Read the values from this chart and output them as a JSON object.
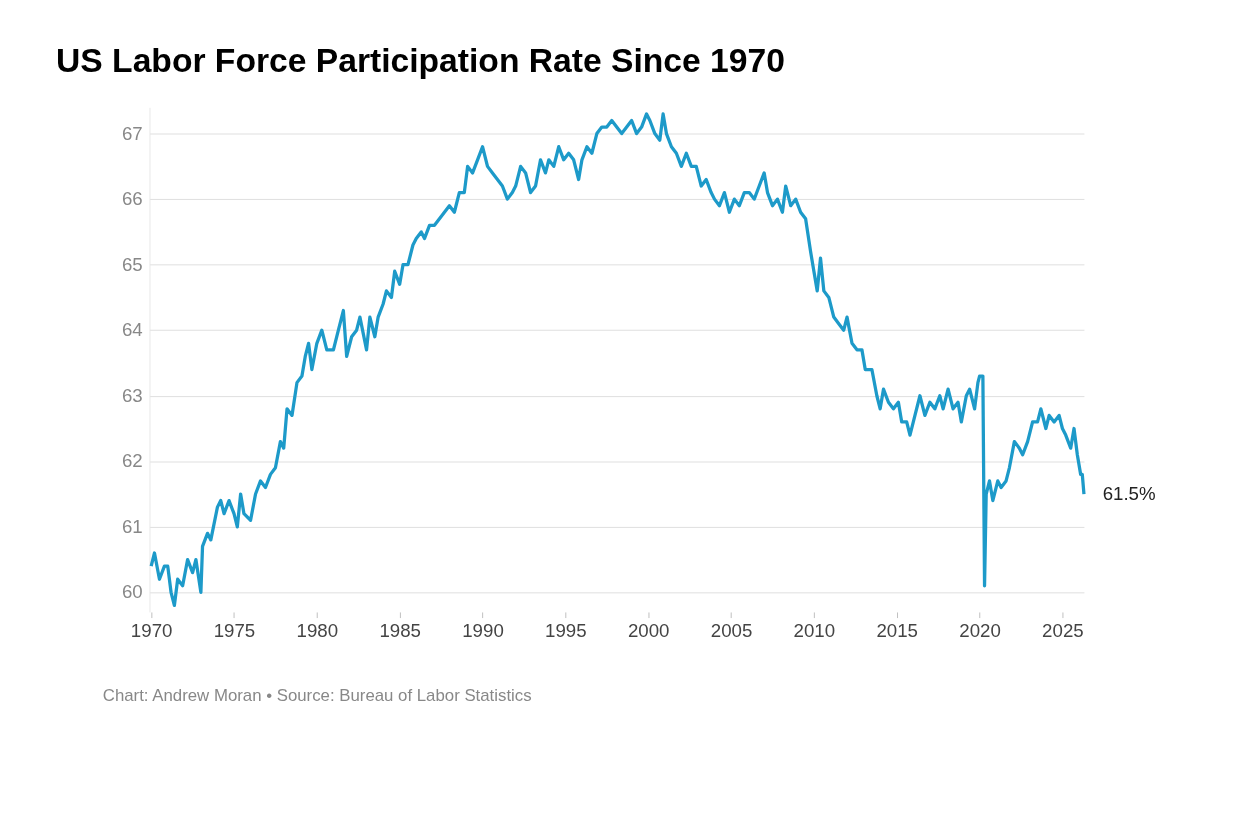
{
  "chart_data": {
    "type": "line",
    "title": "US Labor Force Participation Rate Since 1970",
    "annotations": [
      {
        "text": "61.5%",
        "x": 2026.3,
        "y": 61.5
      },
      "Chart: Andrew Moran • Source: Bureau of Labor Statistics"
    ],
    "x": [
      1970.0,
      1970.2,
      1970.5,
      1970.8,
      1971.0,
      1971.2,
      1971.4,
      1971.6,
      1971.9,
      1972.2,
      1972.5,
      1972.7,
      1973.0,
      1973.1,
      1973.4,
      1973.6,
      1974.0,
      1974.2,
      1974.4,
      1974.7,
      1975.0,
      1975.2,
      1975.4,
      1975.6,
      1976.0,
      1976.3,
      1976.6,
      1976.9,
      1977.2,
      1977.5,
      1977.8,
      1978.0,
      1978.2,
      1978.5,
      1978.8,
      1979.1,
      1979.3,
      1979.5,
      1979.7,
      1980.0,
      1980.3,
      1980.6,
      1981.0,
      1981.3,
      1981.6,
      1981.8,
      1982.1,
      1982.4,
      1982.6,
      1983.0,
      1983.2,
      1983.5,
      1983.7,
      1984.0,
      1984.2,
      1984.5,
      1984.7,
      1985.0,
      1985.2,
      1985.5,
      1985.8,
      1986.0,
      1986.3,
      1986.5,
      1986.8,
      1987.1,
      1987.4,
      1987.7,
      1988.0,
      1988.3,
      1988.6,
      1988.9,
      1989.1,
      1989.4,
      1989.7,
      1990.0,
      1990.3,
      1990.6,
      1990.9,
      1991.2,
      1991.5,
      1991.8,
      1992.0,
      1992.3,
      1992.6,
      1992.9,
      1993.2,
      1993.5,
      1993.8,
      1994.0,
      1994.3,
      1994.6,
      1994.9,
      1995.2,
      1995.5,
      1995.8,
      1996.0,
      1996.3,
      1996.6,
      1996.9,
      1997.2,
      1997.5,
      1997.8,
      1998.1,
      1998.4,
      1998.7,
      1999.0,
      1999.3,
      1999.6,
      1999.9,
      2000.1,
      2000.4,
      2000.7,
      2000.9,
      2001.1,
      2001.4,
      2001.7,
      2002.0,
      2002.3,
      2002.6,
      2002.9,
      2003.2,
      2003.5,
      2003.8,
      2004.0,
      2004.3,
      2004.6,
      2004.9,
      2005.2,
      2005.5,
      2005.8,
      2006.1,
      2006.4,
      2006.7,
      2007.0,
      2007.2,
      2007.5,
      2007.8,
      2008.1,
      2008.3,
      2008.6,
      2008.9,
      2009.2,
      2009.5,
      2009.8,
      2010.0,
      2010.2,
      2010.4,
      2010.6,
      2010.9,
      2011.2,
      2011.5,
      2011.8,
      2012.0,
      2012.3,
      2012.6,
      2012.9,
      2013.1,
      2013.5,
      2013.8,
      2014.0,
      2014.2,
      2014.5,
      2014.8,
      2015.1,
      2015.3,
      2015.6,
      2015.8,
      2016.1,
      2016.4,
      2016.7,
      2017.0,
      2017.3,
      2017.6,
      2017.8,
      2018.1,
      2018.4,
      2018.7,
      2018.9,
      2019.2,
      2019.4,
      2019.7,
      2019.9,
      2020.0,
      2020.1,
      2020.2,
      2020.3,
      2020.4,
      2020.6,
      2020.8,
      2021.1,
      2021.3,
      2021.6,
      2021.8,
      2022.1,
      2022.4,
      2022.6,
      2022.9,
      2023.2,
      2023.5,
      2023.7,
      2024.0,
      2024.2,
      2024.5,
      2024.8,
      2025.0,
      2025.2,
      2025.5,
      2025.7,
      2025.9,
      2026.1,
      2026.2,
      2026.3
    ],
    "series": [
      {
        "color": "#1d9ac9",
        "values": [
          60.4,
          60.6,
          60.2,
          60.4,
          60.4,
          60.0,
          59.8,
          60.2,
          60.1,
          60.5,
          60.3,
          60.5,
          60.0,
          60.7,
          60.9,
          60.8,
          61.3,
          61.4,
          61.2,
          61.4,
          61.2,
          61.0,
          61.5,
          61.2,
          61.1,
          61.5,
          61.7,
          61.6,
          61.8,
          61.9,
          62.3,
          62.2,
          62.8,
          62.7,
          63.2,
          63.3,
          63.6,
          63.8,
          63.4,
          63.8,
          64.0,
          63.7,
          63.7,
          64.0,
          64.3,
          63.6,
          63.9,
          64.0,
          64.2,
          63.7,
          64.2,
          63.9,
          64.2,
          64.4,
          64.6,
          64.5,
          64.9,
          64.7,
          65.0,
          65.0,
          65.3,
          65.4,
          65.5,
          65.4,
          65.6,
          65.6,
          65.7,
          65.8,
          65.9,
          65.8,
          66.1,
          66.1,
          66.5,
          66.4,
          66.6,
          66.8,
          66.5,
          66.4,
          66.3,
          66.2,
          66.0,
          66.1,
          66.2,
          66.5,
          66.4,
          66.1,
          66.2,
          66.6,
          66.4,
          66.6,
          66.5,
          66.8,
          66.6,
          66.7,
          66.6,
          66.3,
          66.6,
          66.8,
          66.7,
          67.0,
          67.1,
          67.1,
          67.2,
          67.1,
          67.0,
          67.1,
          67.2,
          67.0,
          67.1,
          67.3,
          67.2,
          67.0,
          66.9,
          67.3,
          67.0,
          66.8,
          66.7,
          66.5,
          66.7,
          66.5,
          66.5,
          66.2,
          66.3,
          66.1,
          66.0,
          65.9,
          66.1,
          65.8,
          66.0,
          65.9,
          66.1,
          66.1,
          66.0,
          66.2,
          66.4,
          66.1,
          65.9,
          66.0,
          65.8,
          66.2,
          65.9,
          66.0,
          65.8,
          65.7,
          65.2,
          64.9,
          64.6,
          65.1,
          64.6,
          64.5,
          64.2,
          64.1,
          64.0,
          64.2,
          63.8,
          63.7,
          63.7,
          63.4,
          63.4,
          63.0,
          62.8,
          63.1,
          62.9,
          62.8,
          62.9,
          62.6,
          62.6,
          62.4,
          62.7,
          63.0,
          62.7,
          62.9,
          62.8,
          63.0,
          62.8,
          63.1,
          62.8,
          62.9,
          62.6,
          63.0,
          63.1,
          62.8,
          63.2,
          63.3,
          63.3,
          63.3,
          60.1,
          61.5,
          61.7,
          61.4,
          61.7,
          61.6,
          61.7,
          61.9,
          62.3,
          62.2,
          62.1,
          62.3,
          62.6,
          62.6,
          62.8,
          62.5,
          62.7,
          62.6,
          62.7,
          62.5,
          62.4,
          62.2,
          62.5,
          62.1,
          61.8,
          61.8,
          61.5
        ]
      }
    ],
    "xlim": [
      1969.9,
      2026.3
    ],
    "xticks": [
      1970,
      1975,
      1980,
      1985,
      1990,
      1995,
      2000,
      2005,
      2010,
      2015,
      2020,
      2025
    ],
    "ylim": [
      59.7,
      67.4
    ],
    "yticks": [
      60,
      61,
      62,
      63,
      64,
      65,
      66,
      67
    ],
    "grid": "y",
    "marker": "none",
    "line_style": "solid"
  }
}
